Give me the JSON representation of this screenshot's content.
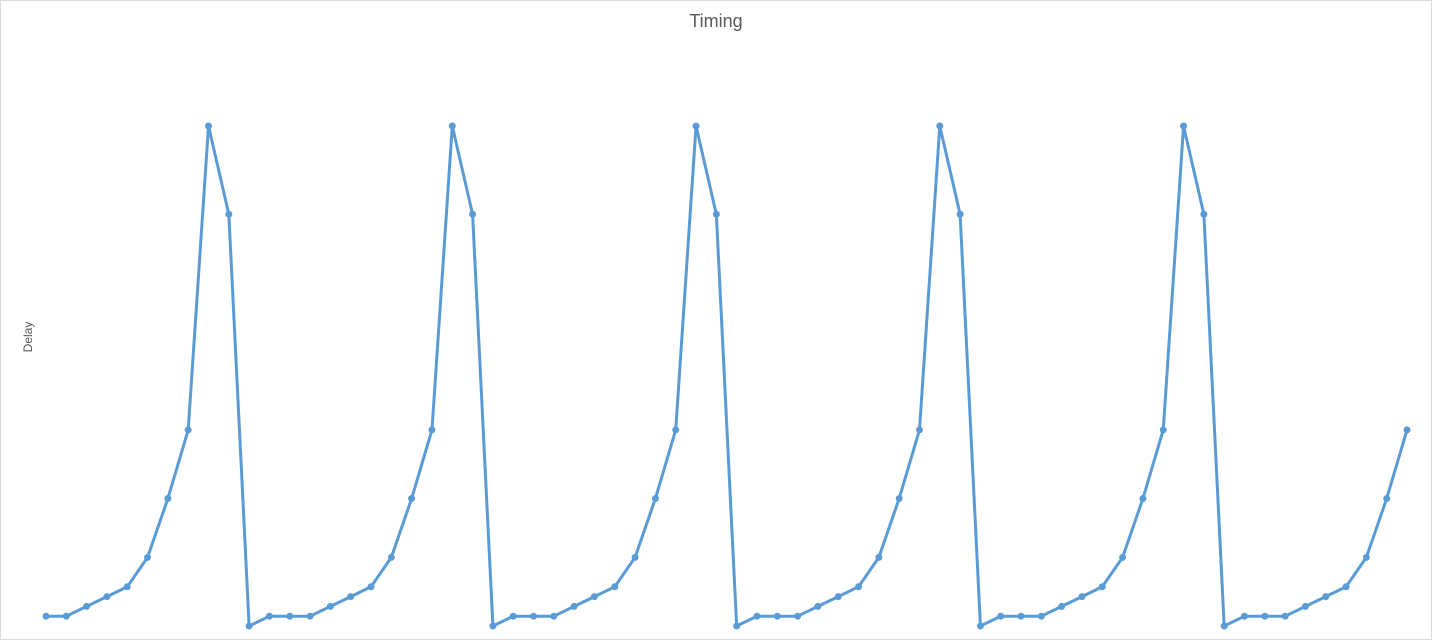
{
  "chart_data": {
    "type": "line",
    "title": "Timing",
    "xlabel": "",
    "ylabel": "Delay",
    "grid": false,
    "legend": "none",
    "color": "#5b9bd5",
    "x": [
      1,
      2,
      3,
      4,
      5,
      6,
      7,
      8,
      9,
      10,
      11,
      12,
      13,
      14,
      15,
      16,
      17,
      18,
      19,
      20,
      21,
      22,
      23,
      24,
      25,
      26,
      27,
      28,
      29,
      30,
      31,
      32,
      33,
      34,
      35,
      36,
      37,
      38,
      39,
      40,
      41,
      42,
      43,
      44,
      45,
      46,
      47,
      48,
      49,
      50,
      51,
      52,
      53,
      54,
      55,
      56,
      57,
      58,
      59,
      60,
      61,
      62,
      63,
      64,
      65,
      66,
      67,
      68
    ],
    "series": [
      {
        "values": [
          1,
          1,
          2,
          3,
          4,
          7,
          13,
          20,
          51,
          42,
          0,
          1,
          1,
          1,
          2,
          3,
          4,
          7,
          13,
          20,
          51,
          42,
          0,
          1,
          1,
          1,
          2,
          3,
          4,
          7,
          13,
          20,
          51,
          42,
          0,
          1,
          1,
          1,
          2,
          3,
          4,
          7,
          13,
          20,
          51,
          42,
          0,
          1,
          1,
          1,
          2,
          3,
          4,
          7,
          13,
          20,
          51,
          42,
          0,
          1,
          1,
          1,
          2,
          3,
          4,
          7,
          13,
          20
        ]
      }
    ],
    "ylim": [
      0,
      51
    ]
  }
}
